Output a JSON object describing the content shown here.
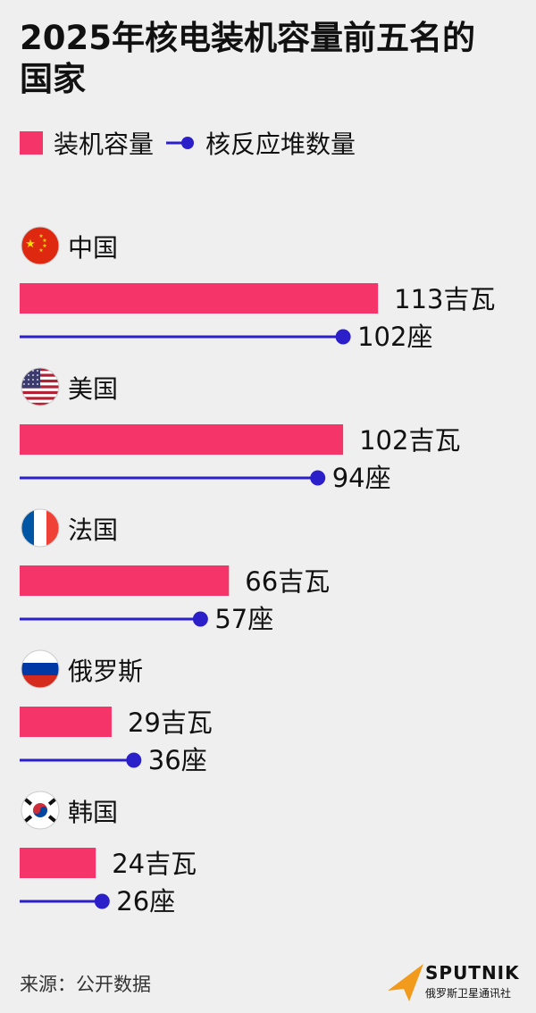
{
  "title": "2025年核电装机容量前五名的国家",
  "source": "来源：公开数据",
  "brand": {
    "name": "SPUTNIK",
    "subtitle": "俄罗斯卫星通讯社"
  },
  "colors": {
    "capacity": "#f5356a",
    "reactors": "#2a1fc9"
  },
  "chart_data": {
    "type": "bar",
    "categories": [
      "中国",
      "美国",
      "法国",
      "俄罗斯",
      "韩国"
    ],
    "flags": [
      "china-flag",
      "usa-flag",
      "france-flag",
      "russia-flag",
      "south-korea-flag"
    ],
    "series": [
      {
        "name": "装机容量",
        "values": [
          113,
          102,
          66,
          29,
          24
        ],
        "unit": "吉瓦",
        "labels": [
          "113吉瓦",
          "102吉瓦",
          "66吉瓦",
          "29吉瓦",
          "24吉瓦"
        ]
      },
      {
        "name": "核反应堆数量",
        "values": [
          102,
          94,
          57,
          36,
          26
        ],
        "unit": "座",
        "labels": [
          "102座",
          "94座",
          "57座",
          "36座",
          "26座"
        ]
      }
    ],
    "legend_position": "top-left",
    "grid": false
  }
}
